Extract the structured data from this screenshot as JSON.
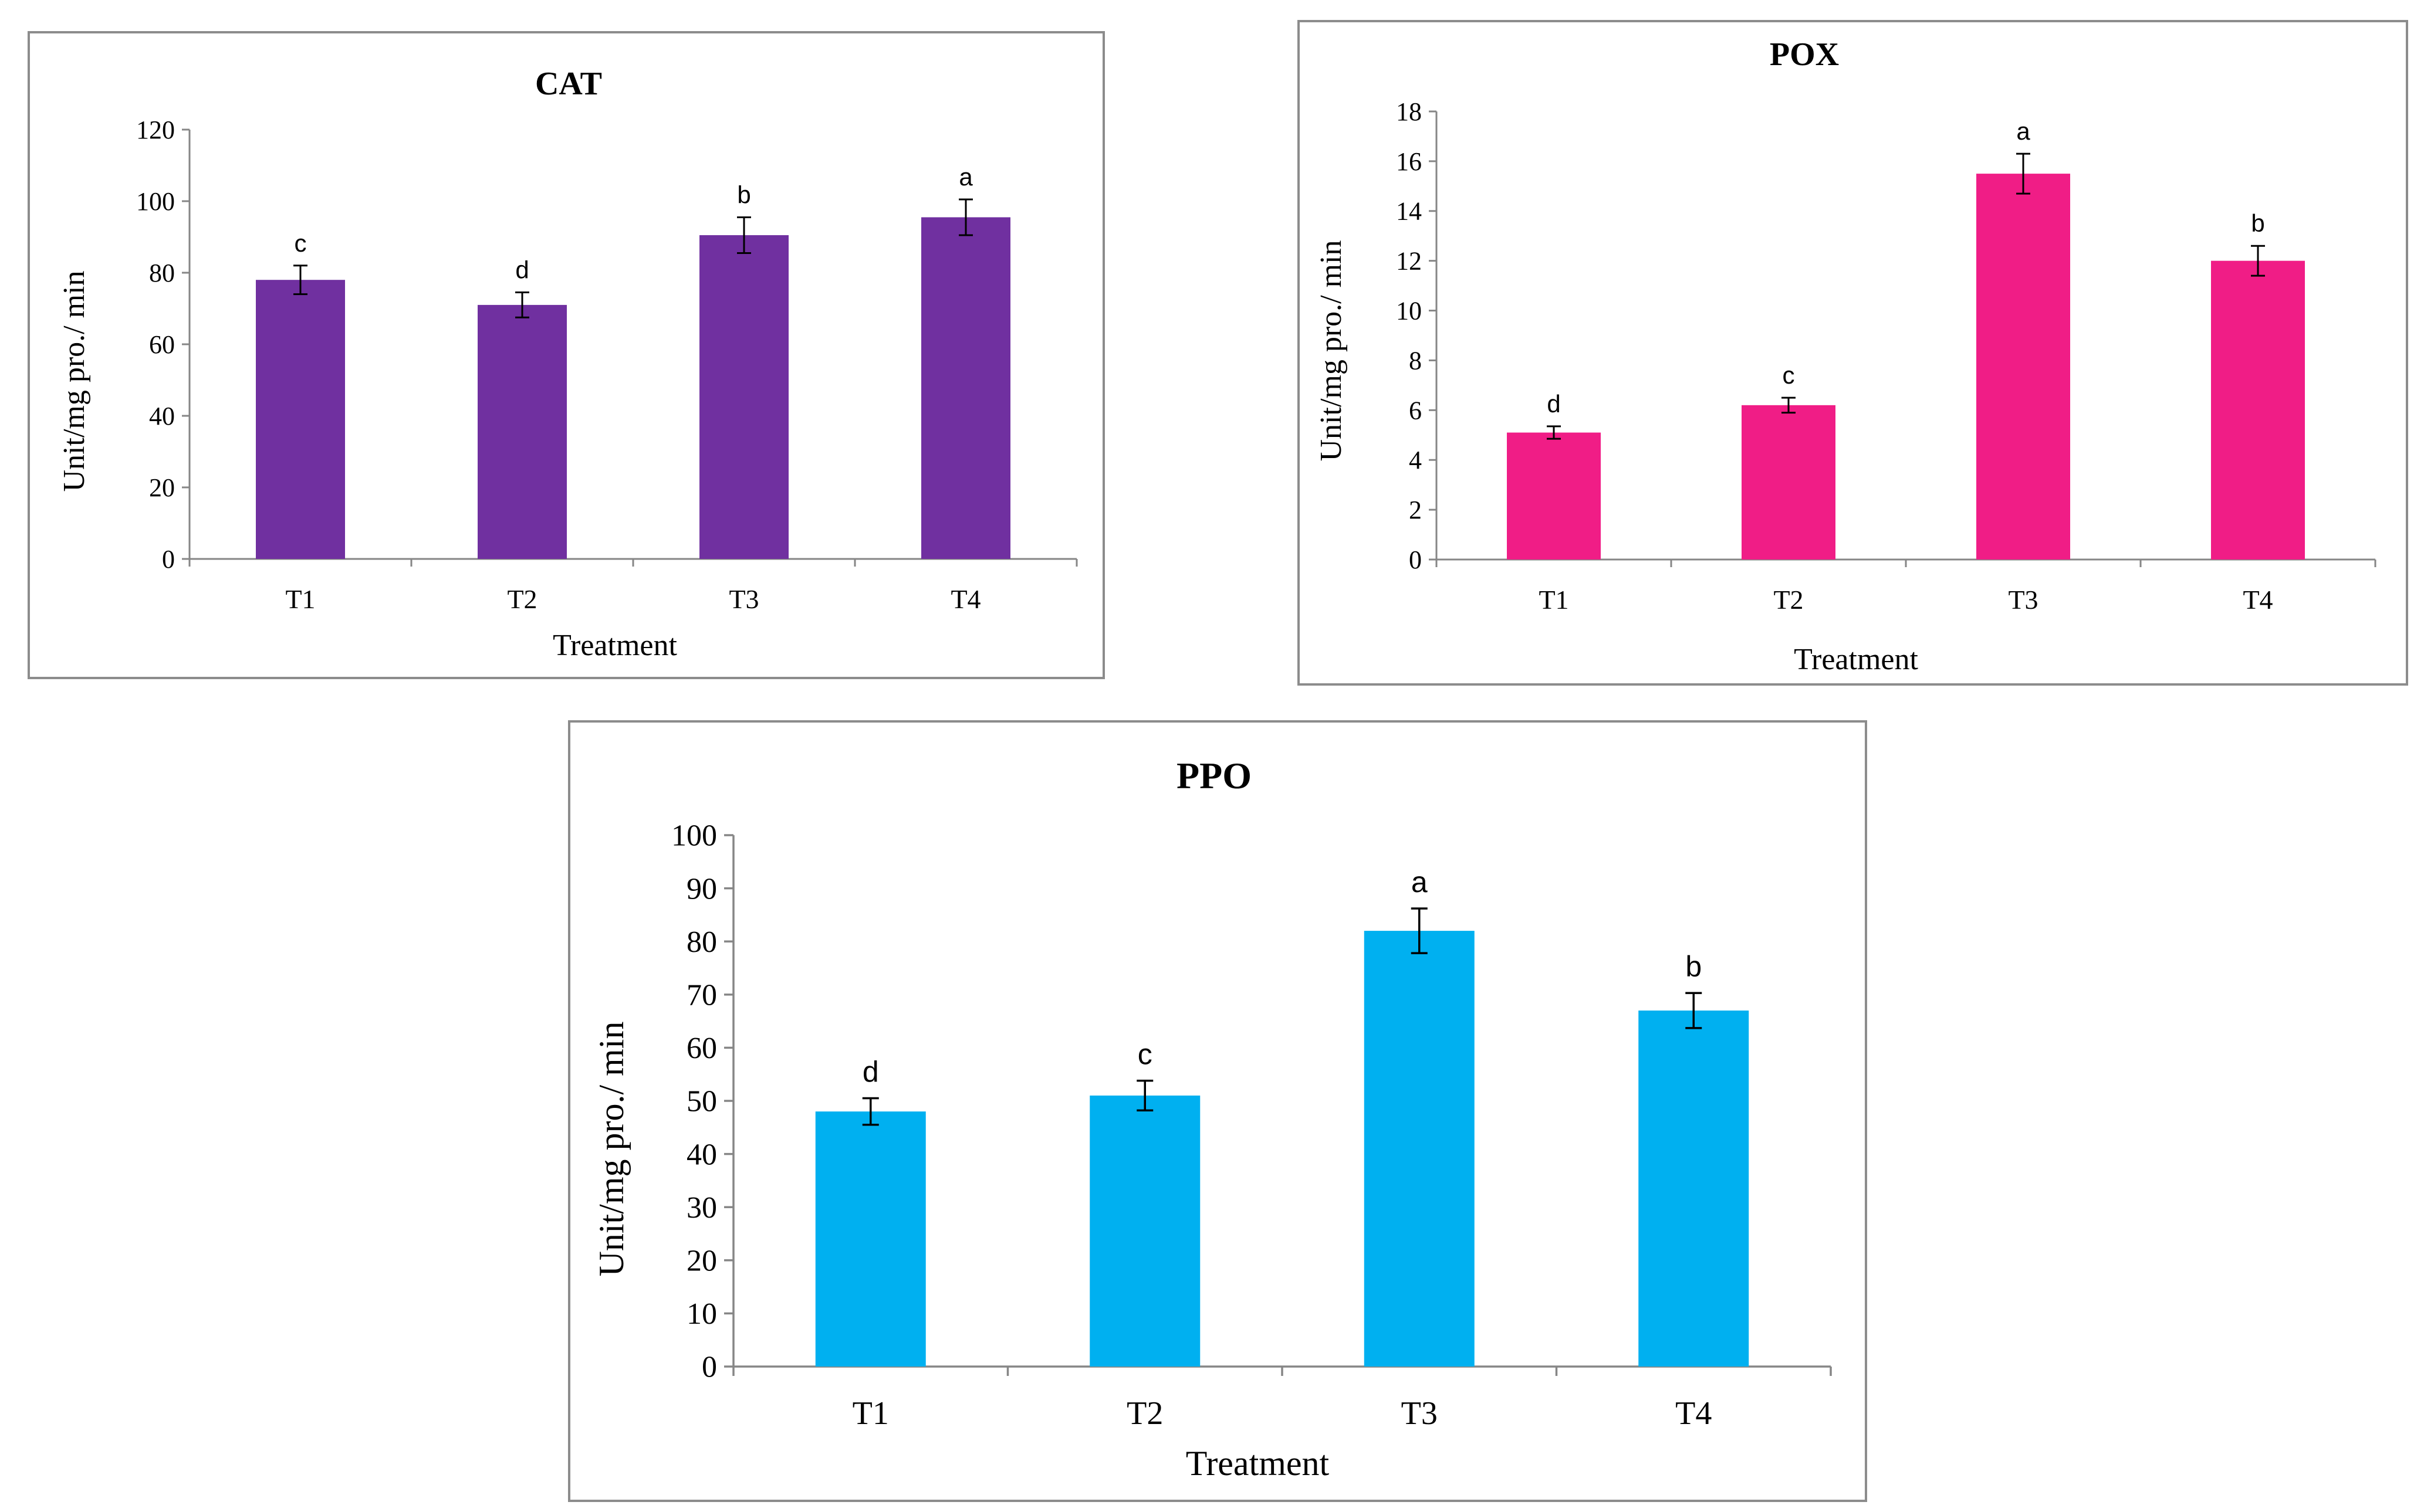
{
  "chart_data": [
    {
      "id": "cat",
      "type": "bar",
      "title": "CAT",
      "xlabel": "Treatment",
      "ylabel": "Unit/mg pro./ min",
      "categories": [
        "T1",
        "T2",
        "T3",
        "T4"
      ],
      "values": [
        78,
        71,
        90.5,
        95.5
      ],
      "errors": [
        4,
        3.5,
        5,
        5
      ],
      "letters": [
        "c",
        "d",
        "b",
        "a"
      ],
      "ylim": [
        0,
        120
      ],
      "yticks": [
        0,
        20,
        40,
        60,
        80,
        100,
        120
      ],
      "color": "#7030a0",
      "grid": false
    },
    {
      "id": "pox",
      "type": "bar",
      "title": "POX",
      "xlabel": "Treatment",
      "ylabel": "Unit/mg pro./ min",
      "categories": [
        "T1",
        "T2",
        "T3",
        "T4"
      ],
      "values": [
        5.1,
        6.2,
        15.5,
        12
      ],
      "errors": [
        0.25,
        0.3,
        0.8,
        0.6
      ],
      "letters": [
        "d",
        "c",
        "a",
        "b"
      ],
      "ylim": [
        0,
        18
      ],
      "yticks": [
        0,
        2,
        4,
        6,
        8,
        10,
        12,
        14,
        16,
        18
      ],
      "color": "#f01d86",
      "grid": false
    },
    {
      "id": "ppo",
      "type": "bar",
      "title": "PPO",
      "xlabel": "Treatment",
      "ylabel": "Unit/mg pro./ min",
      "categories": [
        "T1",
        "T2",
        "T3",
        "T4"
      ],
      "values": [
        48,
        51,
        82,
        67
      ],
      "errors": [
        2.5,
        2.8,
        4.2,
        3.3
      ],
      "letters": [
        "d",
        "c",
        "a",
        "b"
      ],
      "ylim": [
        0,
        100
      ],
      "yticks": [
        0,
        10,
        20,
        30,
        40,
        50,
        60,
        70,
        80,
        90,
        100
      ],
      "color": "#00b0f0",
      "grid": false
    }
  ]
}
